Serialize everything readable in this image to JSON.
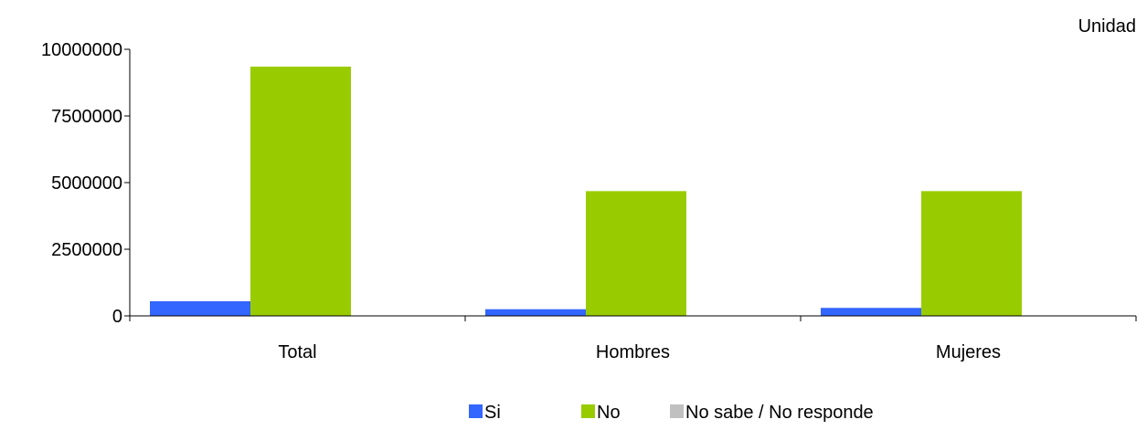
{
  "chart_data": {
    "type": "bar",
    "unit_label": "Unidad",
    "categories": [
      "Total",
      "Hombres",
      "Mujeres"
    ],
    "series": [
      {
        "name": "Si",
        "color": "#3366FF",
        "values": [
          550000,
          250000,
          300000
        ]
      },
      {
        "name": "No",
        "color": "#99CC00",
        "values": [
          9350000,
          4680000,
          4680000
        ]
      },
      {
        "name": "No sabe / No responde",
        "color": "#C0C0C0",
        "values": [
          0,
          0,
          0
        ]
      }
    ],
    "ylim": [
      0,
      10000000
    ],
    "yticks": [
      0,
      2500000,
      5000000,
      7500000,
      10000000
    ],
    "grid": false,
    "legend_position": "bottom"
  }
}
